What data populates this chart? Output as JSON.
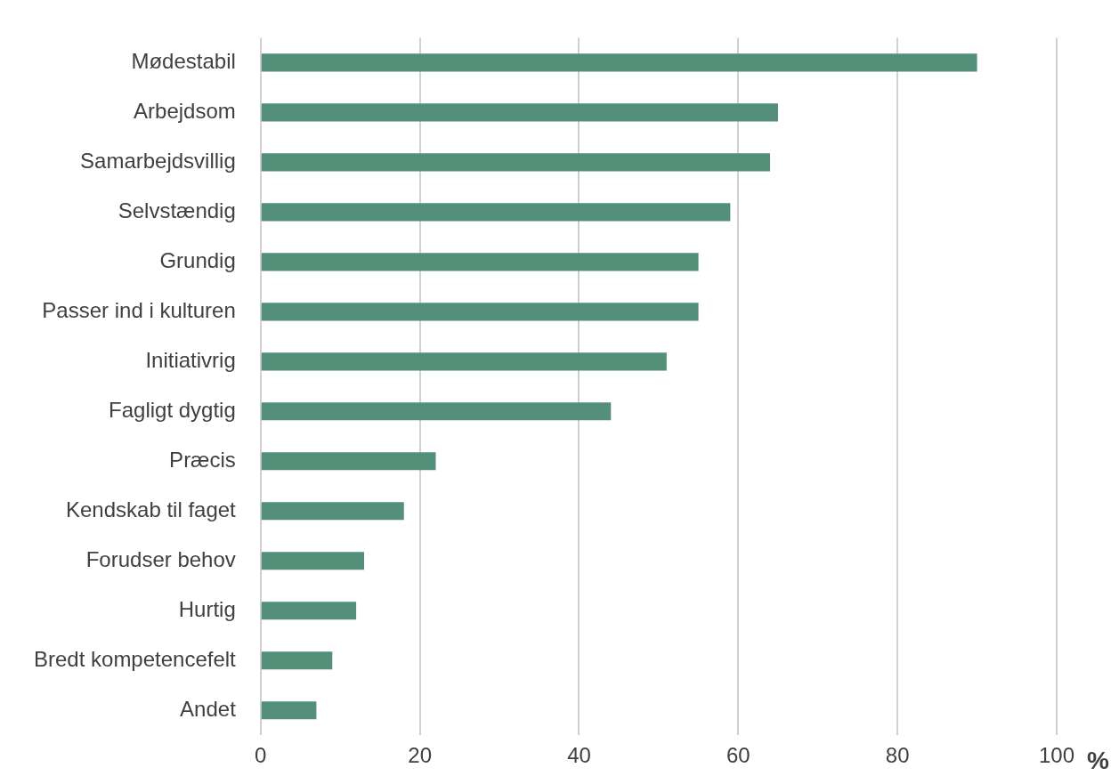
{
  "chart_data": {
    "type": "bar",
    "orientation": "horizontal",
    "xlabel": "%",
    "categories": [
      "Mødestabil",
      "Arbejdsom",
      "Samarbejdsvillig",
      "Selvstændig",
      "Grundig",
      "Passer ind i kulturen",
      "Initiativrig",
      "Fagligt dygtig",
      "Præcis",
      "Kendskab til faget",
      "Forudser behov",
      "Hurtig",
      "Bredt kompetencefelt",
      "Andet"
    ],
    "values": [
      90,
      65,
      64,
      59,
      55,
      55,
      51,
      44,
      22,
      18,
      13,
      12,
      9,
      7
    ],
    "color": "#548f7a",
    "xlim": [
      0,
      100
    ],
    "xticks": [
      0,
      20,
      40,
      60,
      80,
      100
    ],
    "grid": "x",
    "legend": false
  }
}
